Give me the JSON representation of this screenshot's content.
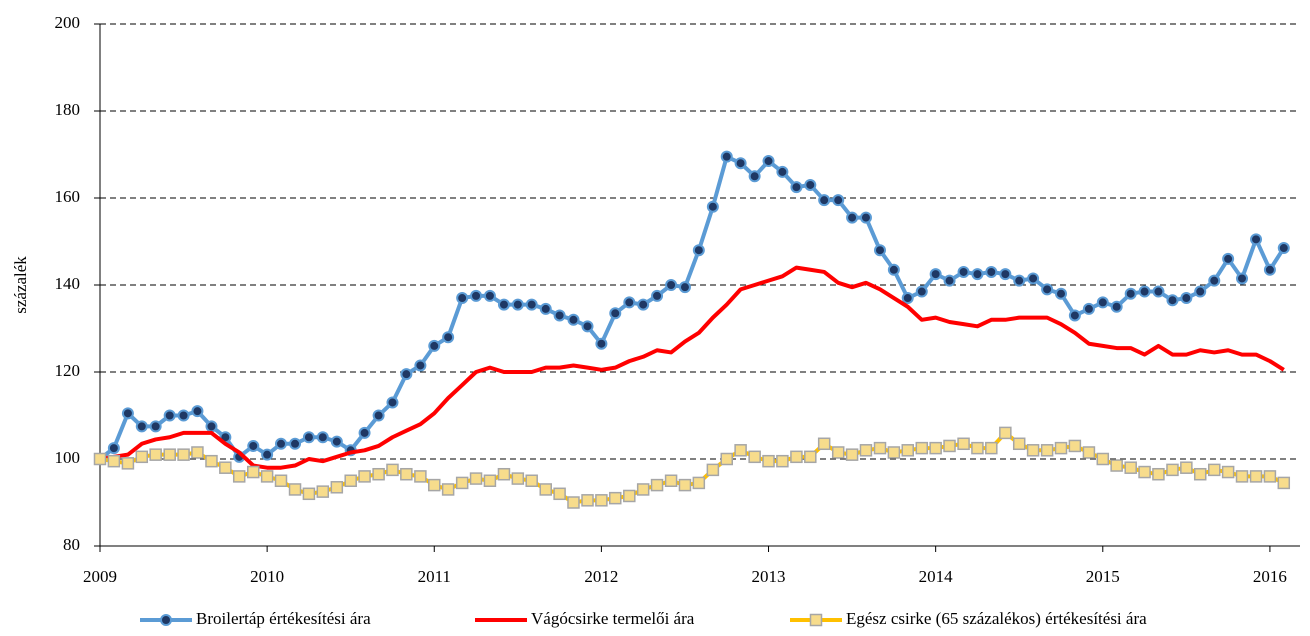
{
  "chart_data": {
    "type": "line",
    "ylabel": "százalék",
    "xlim": [
      2009,
      2016.18
    ],
    "xticks": [
      2009,
      2010,
      2011,
      2012,
      2013,
      2014,
      2015,
      2016
    ],
    "ylim": [
      80,
      200
    ],
    "yticks": [
      80,
      100,
      120,
      140,
      160,
      180,
      200
    ],
    "grid": true,
    "legend": "bottom",
    "x": [
      2009,
      2009.083,
      2009.167,
      2009.25,
      2009.333,
      2009.417,
      2009.5,
      2009.583,
      2009.667,
      2009.75,
      2009.833,
      2009.917,
      2010,
      2010.083,
      2010.167,
      2010.25,
      2010.333,
      2010.417,
      2010.5,
      2010.583,
      2010.667,
      2010.75,
      2010.833,
      2010.917,
      2011,
      2011.083,
      2011.167,
      2011.25,
      2011.333,
      2011.417,
      2011.5,
      2011.583,
      2011.667,
      2011.75,
      2011.833,
      2011.917,
      2012,
      2012.083,
      2012.167,
      2012.25,
      2012.333,
      2012.417,
      2012.5,
      2012.583,
      2012.667,
      2012.75,
      2012.833,
      2012.917,
      2013,
      2013.083,
      2013.167,
      2013.25,
      2013.333,
      2013.417,
      2013.5,
      2013.583,
      2013.667,
      2013.75,
      2013.833,
      2013.917,
      2014,
      2014.083,
      2014.167,
      2014.25,
      2014.333,
      2014.417,
      2014.5,
      2014.583,
      2014.667,
      2014.75,
      2014.833,
      2014.917,
      2015,
      2015.083,
      2015.167,
      2015.25,
      2015.333,
      2015.417,
      2015.5,
      2015.583,
      2015.667,
      2015.75,
      2015.833,
      2015.917,
      2016,
      2016.083
    ],
    "series": [
      {
        "name": "Broilertáp értékesítési ára",
        "color": "#5b9bd5",
        "marker": "circle",
        "marker_fill": "#1f3864",
        "values": [
          100,
          102.5,
          110.5,
          107.5,
          107.5,
          110,
          110,
          111,
          107.5,
          105,
          100.5,
          103,
          101,
          103.5,
          103.5,
          105,
          105,
          104,
          102,
          106,
          110,
          113,
          119.5,
          121.5,
          126,
          128,
          137,
          137.5,
          137.5,
          135.5,
          135.5,
          135.5,
          134.5,
          133,
          132,
          130.5,
          126.5,
          133.5,
          136,
          135.5,
          137.5,
          140,
          139.5,
          148,
          158,
          169.5,
          168,
          165,
          168.5,
          166,
          162.5,
          163,
          159.5,
          159.5,
          155.5,
          155.5,
          148,
          143.5,
          137,
          138.5,
          142.5,
          141,
          143,
          142.5,
          143,
          142.5,
          141,
          141.5,
          139,
          138,
          133,
          134.5,
          136,
          135,
          138,
          138.5,
          138.5,
          136.5,
          137,
          138.5,
          141,
          146,
          141.5,
          150.5,
          143.5,
          148.5
        ]
      },
      {
        "name": "Vágócsirke termelői ára",
        "color": "#ff0000",
        "marker": null,
        "values": [
          100,
          100.5,
          101,
          103.5,
          104.5,
          105,
          106,
          106,
          106,
          103.5,
          101.5,
          98.5,
          98,
          98,
          98.5,
          100,
          99.5,
          100.5,
          101.5,
          102,
          103,
          105,
          106.5,
          108,
          110.5,
          114,
          117,
          120,
          121,
          120,
          120,
          120,
          121,
          121,
          121.5,
          121,
          120.5,
          121,
          122.5,
          123.5,
          125,
          124.5,
          127,
          129,
          132.5,
          135.5,
          139,
          140,
          141,
          142,
          144,
          143.5,
          143,
          140.5,
          139.5,
          140.5,
          139,
          137,
          135,
          132,
          132.5,
          131.5,
          131,
          130.5,
          132,
          132,
          132.5,
          132.5,
          132.5,
          131,
          129,
          126.5,
          126,
          125.5,
          125.5,
          124,
          126,
          124,
          124,
          125,
          124.5,
          125,
          124,
          124,
          122.5,
          120.5
        ]
      },
      {
        "name": "Egész csirke (65 százalékos) értékesítési ára",
        "color": "#ffc000",
        "marker": "square",
        "marker_fill": "#f7dc8c",
        "values": [
          100,
          99.5,
          99,
          100.5,
          101,
          101,
          101,
          101.5,
          99.5,
          98,
          96,
          97,
          96,
          95,
          93,
          92,
          92.5,
          93.5,
          95,
          96,
          96.5,
          97.5,
          96.5,
          96,
          94,
          93,
          94.5,
          95.5,
          95,
          96.5,
          95.5,
          95,
          93,
          92,
          90,
          90.5,
          90.5,
          91,
          91.5,
          93,
          94,
          95,
          94,
          94.5,
          97.5,
          100,
          102,
          100.5,
          99.5,
          99.5,
          100.5,
          100.5,
          103.5,
          101.5,
          101,
          102,
          102.5,
          101.5,
          102,
          102.5,
          102.5,
          103,
          103.5,
          102.5,
          102.5,
          106,
          103.5,
          102,
          102,
          102.5,
          103,
          101.5,
          100,
          98.5,
          98,
          97,
          96.5,
          97.5,
          98,
          96.5,
          97.5,
          97,
          96,
          96,
          96,
          94.5
        ]
      }
    ]
  }
}
